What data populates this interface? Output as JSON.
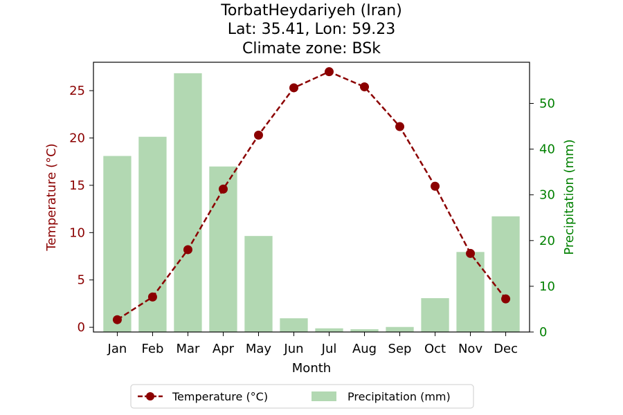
{
  "chart_data": {
    "type": "bar+line",
    "title_lines": [
      "TorbatHeydariyeh (Iran)",
      "Lat: 35.41, Lon: 59.23",
      "Climate zone: BSk"
    ],
    "xlabel": "Month",
    "ylabel_left": "Temperature (°C)",
    "ylabel_right": "Precipitation (mm)",
    "categories": [
      "Jan",
      "Feb",
      "Mar",
      "Apr",
      "May",
      "Jun",
      "Jul",
      "Aug",
      "Sep",
      "Oct",
      "Nov",
      "Dec"
    ],
    "temperature": {
      "name": "Temperature (°C)",
      "values": [
        0.8,
        3.2,
        8.2,
        14.6,
        20.3,
        25.3,
        27.0,
        25.4,
        21.2,
        14.9,
        7.8,
        3.0
      ],
      "ylim": [
        -0.5,
        28.0
      ],
      "ticks": [
        0,
        5,
        10,
        15,
        20,
        25
      ]
    },
    "precipitation": {
      "name": "Precipitation (mm)",
      "values": [
        38.5,
        42.7,
        56.6,
        36.2,
        21.0,
        3.0,
        0.8,
        0.6,
        1.1,
        7.4,
        17.5,
        25.3
      ],
      "ylim": [
        0,
        59.0
      ],
      "ticks": [
        0,
        10,
        20,
        30,
        40,
        50
      ]
    },
    "colors": {
      "temperature": "#8b0000",
      "precipitation_bar": "#b2d8b2",
      "precipitation_axis": "#008000",
      "axes": "#000000"
    },
    "legend_placement": "bottom-center",
    "grid": false
  }
}
